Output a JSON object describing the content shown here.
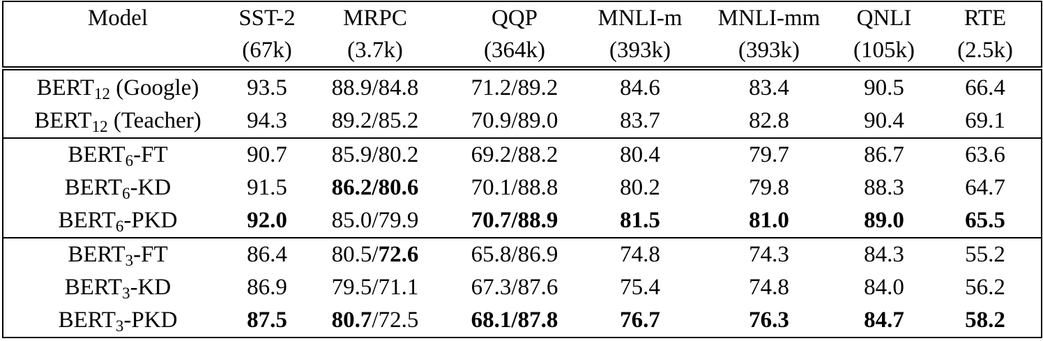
{
  "table": {
    "columns": [
      {
        "name": "Model"
      },
      {
        "name": "SST-2",
        "size": "(67k)"
      },
      {
        "name": "MRPC",
        "size": "(3.7k)"
      },
      {
        "name": "QQP",
        "size": "(364k)"
      },
      {
        "name": "MNLI-m",
        "size": "(393k)"
      },
      {
        "name": "MNLI-mm",
        "size": "(393k)"
      },
      {
        "name": "QNLI",
        "size": "(105k)"
      },
      {
        "name": "RTE",
        "size": "(2.5k)"
      }
    ],
    "groups": [
      [
        {
          "model": {
            "name": "BERT",
            "sub": "12",
            "suffix": " (Google)"
          },
          "cells": [
            "93.5",
            "88.9/84.8",
            "71.2/89.2",
            "84.6",
            "83.4",
            "90.5",
            "66.4"
          ]
        },
        {
          "model": {
            "name": "BERT",
            "sub": "12",
            "suffix": " (Teacher)"
          },
          "cells": [
            "94.3",
            "89.2/85.2",
            "70.9/89.0",
            "83.7",
            "82.8",
            "90.4",
            "69.1"
          ]
        }
      ],
      [
        {
          "model": {
            "name": "BERT",
            "sub": "6",
            "suffix": "-FT"
          },
          "cells": [
            "90.7",
            "85.9/80.2",
            "69.2/88.2",
            "80.4",
            "79.7",
            "86.7",
            "63.6"
          ]
        },
        {
          "model": {
            "name": "BERT",
            "sub": "6",
            "suffix": "-KD"
          },
          "cells": [
            "91.5",
            {
              "text": "86.2/80.6",
              "bold": true
            },
            "70.1/88.8",
            "80.2",
            "79.8",
            "88.3",
            "64.7"
          ]
        },
        {
          "model": {
            "name": "BERT",
            "sub": "6",
            "suffix": "-PKD"
          },
          "cells": [
            {
              "text": "92.0",
              "bold": true
            },
            "85.0/79.9",
            {
              "text": "70.7/88.9",
              "bold": true
            },
            {
              "text": "81.5",
              "bold": true
            },
            {
              "text": "81.0",
              "bold": true
            },
            {
              "text": "89.0",
              "bold": true
            },
            {
              "text": "65.5",
              "bold": true
            }
          ]
        }
      ],
      [
        {
          "model": {
            "name": "BERT",
            "sub": "3",
            "suffix": "-FT"
          },
          "cells": [
            "86.4",
            [
              {
                "text": "80.5/"
              },
              {
                "text": "72.6",
                "bold": true
              }
            ],
            "65.8/86.9",
            "74.8",
            "74.3",
            "84.3",
            "55.2"
          ]
        },
        {
          "model": {
            "name": "BERT",
            "sub": "3",
            "suffix": "-KD"
          },
          "cells": [
            "86.9",
            "79.5/71.1",
            "67.3/87.6",
            "75.4",
            "74.8",
            "84.0",
            "56.2"
          ]
        },
        {
          "model": {
            "name": "BERT",
            "sub": "3",
            "suffix": "-PKD"
          },
          "cells": [
            {
              "text": "87.5",
              "bold": true
            },
            [
              {
                "text": "80.7",
                "bold": true
              },
              {
                "text": "/72.5"
              }
            ],
            {
              "text": "68.1/87.8",
              "bold": true
            },
            {
              "text": "76.7",
              "bold": true
            },
            {
              "text": "76.3",
              "bold": true
            },
            {
              "text": "84.7",
              "bold": true
            },
            {
              "text": "58.2",
              "bold": true
            }
          ]
        }
      ]
    ]
  }
}
